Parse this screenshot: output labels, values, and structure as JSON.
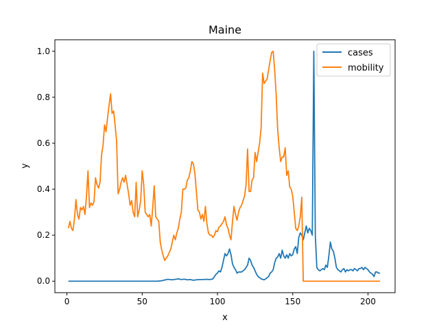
{
  "chart_data": {
    "type": "line",
    "title": "Maine",
    "xlabel": "x",
    "ylabel": "y",
    "xlim": [
      -8,
      218
    ],
    "ylim": [
      -0.05,
      1.05
    ],
    "x_ticks": [
      0,
      50,
      100,
      150,
      200
    ],
    "y_ticks": [
      0.0,
      0.2,
      0.4,
      0.6,
      0.8,
      1.0
    ],
    "x_tick_labels": [
      "0",
      "50",
      "100",
      "150",
      "200"
    ],
    "y_tick_labels": [
      "0.0",
      "0.2",
      "0.4",
      "0.6",
      "0.8",
      "1.0"
    ],
    "grid": false,
    "legend_position": "top-right",
    "series": [
      {
        "name": "cases",
        "color": "#1f77b4",
        "points": [
          [
            1,
            0.0
          ],
          [
            10,
            0.0
          ],
          [
            20,
            0.0
          ],
          [
            30,
            0.0
          ],
          [
            40,
            0.0
          ],
          [
            50,
            0.0
          ],
          [
            55,
            0.0
          ],
          [
            60,
            0.0
          ],
          [
            63,
            0.002
          ],
          [
            65,
            0.005
          ],
          [
            67,
            0.008
          ],
          [
            70,
            0.006
          ],
          [
            72,
            0.008
          ],
          [
            74,
            0.01
          ],
          [
            76,
            0.007
          ],
          [
            78,
            0.009
          ],
          [
            80,
            0.006
          ],
          [
            82,
            0.007
          ],
          [
            84,
            0.004
          ],
          [
            86,
            0.006
          ],
          [
            88,
            0.007
          ],
          [
            90,
            0.007
          ],
          [
            93,
            0.008
          ],
          [
            95,
            0.007
          ],
          [
            97,
            0.01
          ],
          [
            99,
            0.03
          ],
          [
            100,
            0.035
          ],
          [
            101,
            0.045
          ],
          [
            102,
            0.04
          ],
          [
            103,
            0.06
          ],
          [
            104,
            0.09
          ],
          [
            105,
            0.12
          ],
          [
            106,
            0.11
          ],
          [
            107,
            0.12
          ],
          [
            108,
            0.14
          ],
          [
            109,
            0.115
          ],
          [
            110,
            0.075
          ],
          [
            111,
            0.06
          ],
          [
            112,
            0.05
          ],
          [
            113,
            0.035
          ],
          [
            114,
            0.04
          ],
          [
            116,
            0.04
          ],
          [
            118,
            0.05
          ],
          [
            119,
            0.06
          ],
          [
            120,
            0.07
          ],
          [
            121,
            0.1
          ],
          [
            122,
            0.09
          ],
          [
            123,
            0.07
          ],
          [
            124,
            0.06
          ],
          [
            125,
            0.045
          ],
          [
            126,
            0.03
          ],
          [
            127,
            0.02
          ],
          [
            128,
            0.015
          ],
          [
            129,
            0.01
          ],
          [
            130,
            0.008
          ],
          [
            131,
            0.006
          ],
          [
            132,
            0.01
          ],
          [
            133,
            0.015
          ],
          [
            134,
            0.02
          ],
          [
            135,
            0.035
          ],
          [
            136,
            0.04
          ],
          [
            137,
            0.05
          ],
          [
            138,
            0.08
          ],
          [
            139,
            0.1
          ],
          [
            140,
            0.105
          ],
          [
            141,
            0.12
          ],
          [
            142,
            0.1
          ],
          [
            143,
            0.135
          ],
          [
            144,
            0.11
          ],
          [
            145,
            0.1
          ],
          [
            146,
            0.115
          ],
          [
            147,
            0.1
          ],
          [
            148,
            0.12
          ],
          [
            149,
            0.11
          ],
          [
            150,
            0.115
          ],
          [
            151,
            0.14
          ],
          [
            152,
            0.15
          ],
          [
            153,
            0.12
          ],
          [
            154,
            0.19
          ],
          [
            155,
            0.21
          ],
          [
            156,
            0.2
          ],
          [
            157,
            0.18
          ],
          [
            158,
            0.21
          ],
          [
            159,
            0.24
          ],
          [
            160,
            0.21
          ],
          [
            161,
            0.23
          ],
          [
            162,
            0.22
          ],
          [
            163,
            0.2
          ],
          [
            164,
            1.0
          ],
          [
            165,
            0.2
          ],
          [
            166,
            0.06
          ],
          [
            167,
            0.05
          ],
          [
            168,
            0.045
          ],
          [
            169,
            0.05
          ],
          [
            170,
            0.055
          ],
          [
            171,
            0.05
          ],
          [
            172,
            0.07
          ],
          [
            173,
            0.06
          ],
          [
            174,
            0.11
          ],
          [
            175,
            0.17
          ],
          [
            176,
            0.14
          ],
          [
            177,
            0.13
          ],
          [
            178,
            0.1
          ],
          [
            179,
            0.06
          ],
          [
            180,
            0.05
          ],
          [
            181,
            0.045
          ],
          [
            182,
            0.04
          ],
          [
            183,
            0.05
          ],
          [
            184,
            0.055
          ],
          [
            185,
            0.04
          ],
          [
            186,
            0.05
          ],
          [
            187,
            0.045
          ],
          [
            188,
            0.05
          ],
          [
            189,
            0.05
          ],
          [
            190,
            0.045
          ],
          [
            191,
            0.055
          ],
          [
            192,
            0.05
          ],
          [
            193,
            0.045
          ],
          [
            194,
            0.055
          ],
          [
            195,
            0.055
          ],
          [
            196,
            0.06
          ],
          [
            197,
            0.05
          ],
          [
            198,
            0.06
          ],
          [
            199,
            0.055
          ],
          [
            200,
            0.05
          ],
          [
            201,
            0.04
          ],
          [
            202,
            0.035
          ],
          [
            203,
            0.03
          ],
          [
            204,
            0.02
          ],
          [
            205,
            0.04
          ],
          [
            206,
            0.04
          ],
          [
            207,
            0.035
          ],
          [
            208,
            0.035
          ]
        ]
      },
      {
        "name": "mobility",
        "color": "#ff7f0e",
        "points": [
          [
            1,
            0.23
          ],
          [
            2,
            0.26
          ],
          [
            3,
            0.23
          ],
          [
            4,
            0.22
          ],
          [
            5,
            0.27
          ],
          [
            6,
            0.355
          ],
          [
            7,
            0.29
          ],
          [
            8,
            0.27
          ],
          [
            9,
            0.32
          ],
          [
            10,
            0.31
          ],
          [
            11,
            0.325
          ],
          [
            12,
            0.29
          ],
          [
            13,
            0.37
          ],
          [
            14,
            0.48
          ],
          [
            15,
            0.32
          ],
          [
            16,
            0.34
          ],
          [
            17,
            0.33
          ],
          [
            18,
            0.345
          ],
          [
            19,
            0.45
          ],
          [
            20,
            0.42
          ],
          [
            21,
            0.405
          ],
          [
            22,
            0.43
          ],
          [
            23,
            0.55
          ],
          [
            24,
            0.59
          ],
          [
            25,
            0.68
          ],
          [
            26,
            0.65
          ],
          [
            27,
            0.71
          ],
          [
            28,
            0.765
          ],
          [
            29,
            0.815
          ],
          [
            30,
            0.73
          ],
          [
            31,
            0.74
          ],
          [
            32,
            0.68
          ],
          [
            33,
            0.61
          ],
          [
            34,
            0.38
          ],
          [
            35,
            0.4
          ],
          [
            36,
            0.43
          ],
          [
            37,
            0.45
          ],
          [
            38,
            0.43
          ],
          [
            39,
            0.46
          ],
          [
            40,
            0.42
          ],
          [
            41,
            0.38
          ],
          [
            42,
            0.33
          ],
          [
            43,
            0.35
          ],
          [
            44,
            0.3
          ],
          [
            45,
            0.28
          ],
          [
            46,
            0.43
          ],
          [
            47,
            0.28
          ],
          [
            48,
            0.31
          ],
          [
            49,
            0.35
          ],
          [
            50,
            0.48
          ],
          [
            51,
            0.42
          ],
          [
            52,
            0.3
          ],
          [
            53,
            0.29
          ],
          [
            54,
            0.28
          ],
          [
            55,
            0.29
          ],
          [
            56,
            0.24
          ],
          [
            57,
            0.32
          ],
          [
            58,
            0.415
          ],
          [
            59,
            0.28
          ],
          [
            60,
            0.27
          ],
          [
            61,
            0.26
          ],
          [
            62,
            0.17
          ],
          [
            63,
            0.135
          ],
          [
            64,
            0.11
          ],
          [
            65,
            0.09
          ],
          [
            66,
            0.1
          ],
          [
            67,
            0.11
          ],
          [
            68,
            0.125
          ],
          [
            69,
            0.14
          ],
          [
            70,
            0.17
          ],
          [
            71,
            0.2
          ],
          [
            72,
            0.18
          ],
          [
            73,
            0.21
          ],
          [
            74,
            0.23
          ],
          [
            75,
            0.27
          ],
          [
            76,
            0.3
          ],
          [
            77,
            0.4
          ],
          [
            78,
            0.4
          ],
          [
            79,
            0.405
          ],
          [
            80,
            0.44
          ],
          [
            81,
            0.45
          ],
          [
            82,
            0.48
          ],
          [
            83,
            0.52
          ],
          [
            84,
            0.51
          ],
          [
            85,
            0.47
          ],
          [
            86,
            0.39
          ],
          [
            87,
            0.31
          ],
          [
            88,
            0.3
          ],
          [
            89,
            0.27
          ],
          [
            90,
            0.29
          ],
          [
            91,
            0.26
          ],
          [
            92,
            0.325
          ],
          [
            93,
            0.25
          ],
          [
            94,
            0.21
          ],
          [
            95,
            0.2
          ],
          [
            96,
            0.2
          ],
          [
            97,
            0.19
          ],
          [
            98,
            0.2
          ],
          [
            99,
            0.22
          ],
          [
            100,
            0.215
          ],
          [
            101,
            0.235
          ],
          [
            102,
            0.24
          ],
          [
            103,
            0.25
          ],
          [
            104,
            0.26
          ],
          [
            105,
            0.28
          ],
          [
            106,
            0.245
          ],
          [
            107,
            0.23
          ],
          [
            108,
            0.2
          ],
          [
            109,
            0.18
          ],
          [
            110,
            0.26
          ],
          [
            111,
            0.325
          ],
          [
            112,
            0.29
          ],
          [
            113,
            0.265
          ],
          [
            114,
            0.3
          ],
          [
            115,
            0.32
          ],
          [
            116,
            0.33
          ],
          [
            117,
            0.35
          ],
          [
            118,
            0.37
          ],
          [
            119,
            0.42
          ],
          [
            120,
            0.575
          ],
          [
            121,
            0.39
          ],
          [
            122,
            0.39
          ],
          [
            123,
            0.44
          ],
          [
            124,
            0.45
          ],
          [
            125,
            0.56
          ],
          [
            126,
            0.52
          ],
          [
            127,
            0.56
          ],
          [
            128,
            0.6
          ],
          [
            129,
            0.665
          ],
          [
            130,
            0.905
          ],
          [
            131,
            0.86
          ],
          [
            132,
            0.87
          ],
          [
            133,
            0.88
          ],
          [
            134,
            0.92
          ],
          [
            135,
            0.96
          ],
          [
            136,
            0.995
          ],
          [
            137,
            1.0
          ],
          [
            138,
            0.92
          ],
          [
            139,
            0.81
          ],
          [
            140,
            0.66
          ],
          [
            141,
            0.58
          ],
          [
            142,
            0.52
          ],
          [
            143,
            0.54
          ],
          [
            144,
            0.54
          ],
          [
            145,
            0.58
          ],
          [
            146,
            0.46
          ],
          [
            147,
            0.48
          ],
          [
            148,
            0.41
          ],
          [
            149,
            0.4
          ],
          [
            150,
            0.37
          ],
          [
            151,
            0.3
          ],
          [
            152,
            0.23
          ],
          [
            153,
            0.22
          ],
          [
            154,
            0.24
          ],
          [
            155,
            0.28
          ],
          [
            156,
            0.365
          ],
          [
            157,
            0.0
          ],
          [
            160,
            0.0
          ],
          [
            170,
            0.0
          ],
          [
            180,
            0.0
          ],
          [
            190,
            0.0
          ],
          [
            200,
            0.0
          ],
          [
            208,
            0.0
          ]
        ]
      }
    ]
  }
}
